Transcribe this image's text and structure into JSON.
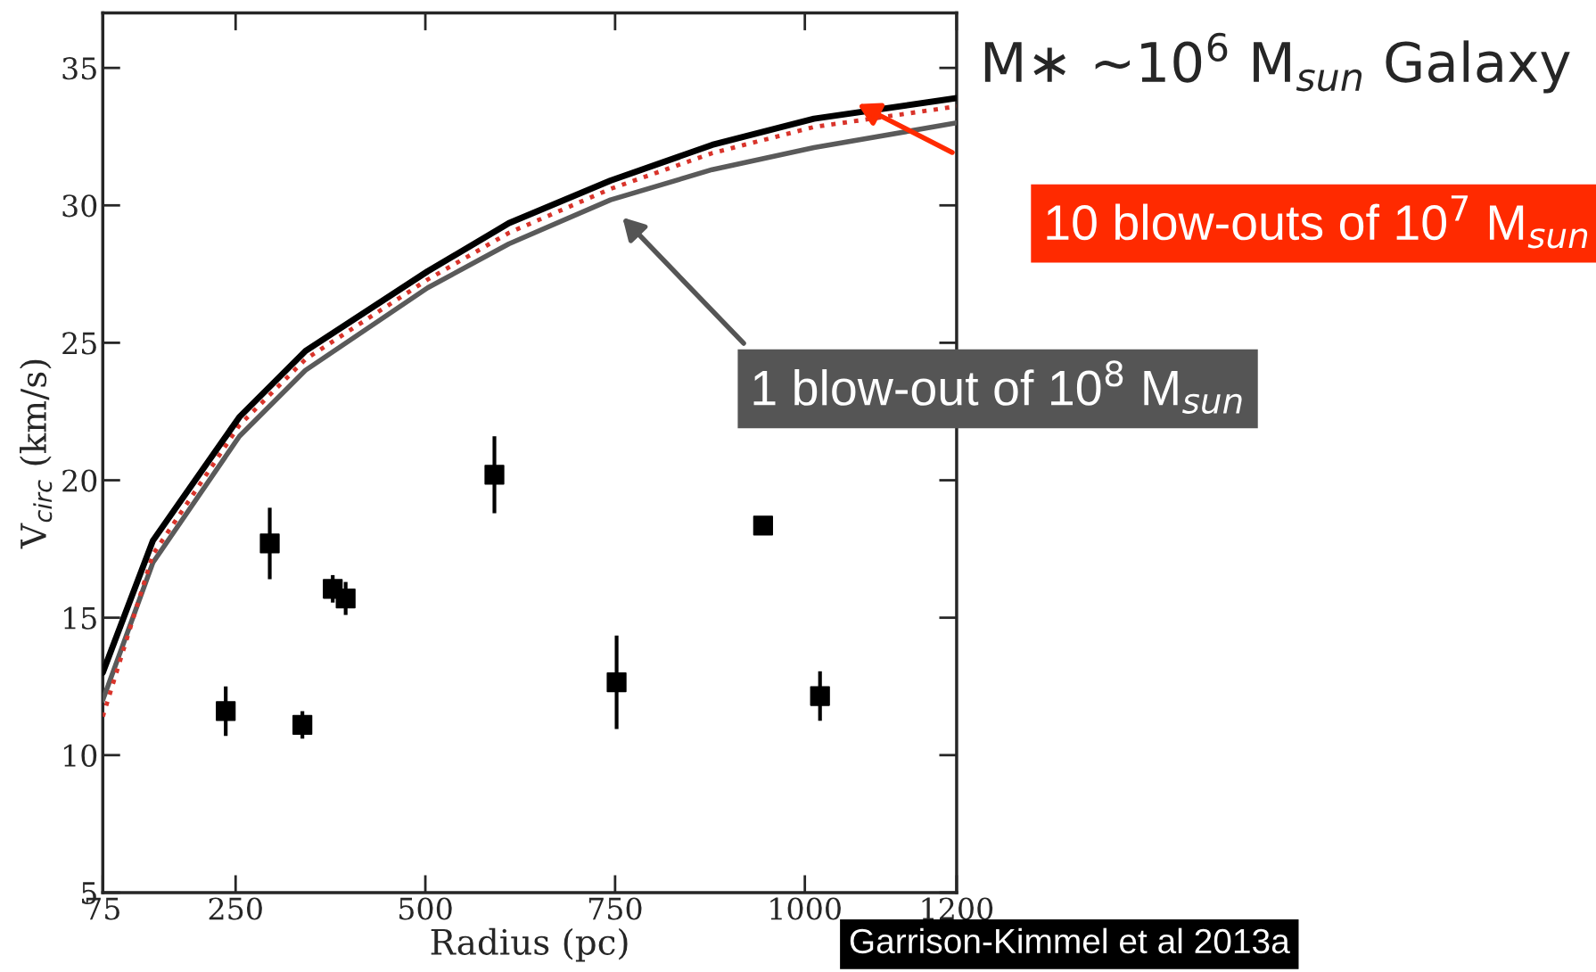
{
  "chart_data": {
    "type": "line",
    "title": "M∗ ~10$^{6}$ M$_{sun}$ Galaxy",
    "xlabel": "Radius (pc)",
    "ylabel": "V$_{circ}$ (km/s)",
    "xlim": [
      75,
      1200
    ],
    "ylim": [
      5,
      37
    ],
    "xticks": [
      75,
      250,
      500,
      750,
      1000,
      1200
    ],
    "yticks": [
      5,
      10,
      15,
      20,
      25,
      30,
      35
    ],
    "grid": false,
    "legend": false,
    "series": [
      {
        "color": "#000000",
        "line_style": "solid",
        "x": [
          75,
          141,
          255,
          342,
          503,
          610,
          744,
          878,
          1012,
          1200
        ],
        "values": [
          13.0,
          17.8,
          22.3,
          24.7,
          27.6,
          29.35,
          30.9,
          32.2,
          33.15,
          33.9
        ]
      },
      {
        "color": "#d9342b",
        "line_style": "dotted",
        "x": [
          75,
          141,
          255,
          342,
          503,
          610,
          744,
          878,
          1012,
          1200
        ],
        "values": [
          11.4,
          17.3,
          22.0,
          24.4,
          27.3,
          29.0,
          30.6,
          31.9,
          32.85,
          33.6
        ]
      },
      {
        "color": "#5a5a5a",
        "line_style": "solid",
        "x": [
          75,
          141,
          255,
          342,
          503,
          610,
          744,
          878,
          1012,
          1200
        ],
        "values": [
          12.0,
          17.0,
          21.6,
          24.0,
          27.0,
          28.6,
          30.2,
          31.3,
          32.1,
          33.0
        ]
      },
      {
        "type": "scatter",
        "color": "#000000",
        "marker": "square",
        "x": [
          237,
          295,
          338,
          378,
          395,
          591,
          752,
          945,
          1020
        ],
        "values": [
          11.6,
          17.7,
          11.1,
          16.05,
          15.7,
          20.2,
          12.65,
          18.35,
          12.15
        ],
        "errors": [
          0.9,
          1.3,
          0.5,
          0.5,
          0.6,
          1.4,
          1.7,
          null,
          0.9
        ]
      }
    ],
    "annotations": [
      "10 blow-outs of 10$^{7}$ M$_{sun}$",
      "1 blow-out of 10$^{8}$ M$_{sun}$",
      "Garrison-Kimmel et al 2013a"
    ]
  }
}
